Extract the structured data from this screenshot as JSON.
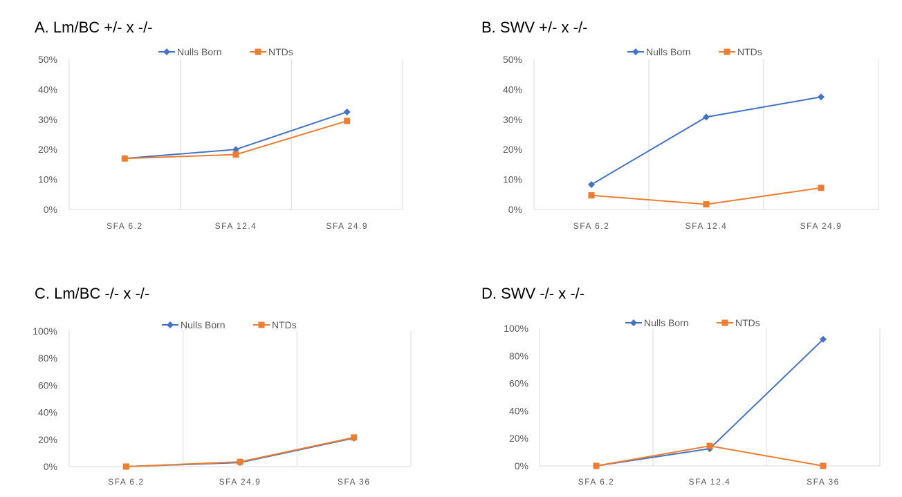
{
  "chart_data": [
    {
      "type": "line",
      "title": "A. Lm/BC +/- x -/-",
      "categories": [
        "SFA 6.2",
        "SFA 12.4",
        "SFA 24.9"
      ],
      "series": [
        {
          "name": "Nulls Born",
          "values": [
            0.17,
            0.2,
            0.325
          ],
          "color": "#4472C4",
          "marker": "diamond"
        },
        {
          "name": "NTDs",
          "values": [
            0.17,
            0.183,
            0.295
          ],
          "color": "#ED7D31",
          "marker": "square"
        }
      ],
      "ylim": [
        0,
        0.5
      ],
      "yticks": [
        "0%",
        "10%",
        "20%",
        "30%",
        "40%",
        "50%"
      ],
      "legend": "top-center",
      "grid": "vertical"
    },
    {
      "type": "line",
      "title": "B. SWV +/- x -/-",
      "categories": [
        "SFA 6.2",
        "SFA 12.4",
        "SFA 24.9"
      ],
      "series": [
        {
          "name": "Nulls Born",
          "values": [
            0.083,
            0.308,
            0.375
          ],
          "color": "#4472C4",
          "marker": "diamond"
        },
        {
          "name": "NTDs",
          "values": [
            0.047,
            0.017,
            0.072
          ],
          "color": "#ED7D31",
          "marker": "square"
        }
      ],
      "ylim": [
        0,
        0.5
      ],
      "yticks": [
        "0%",
        "10%",
        "20%",
        "30%",
        "40%",
        "50%"
      ],
      "legend": "top-center",
      "grid": "vertical"
    },
    {
      "type": "line",
      "title": "C. Lm/BC -/- x -/-",
      "categories": [
        "SFA 6.2",
        "SFA 24.9",
        "SFA 36"
      ],
      "series": [
        {
          "name": "Nulls Born",
          "values": [
            0.0,
            0.03,
            0.21
          ],
          "color": "#4472C4",
          "marker": "diamond"
        },
        {
          "name": "NTDs",
          "values": [
            0.0,
            0.035,
            0.215
          ],
          "color": "#ED7D31",
          "marker": "square"
        }
      ],
      "ylim": [
        0,
        1.0
      ],
      "yticks": [
        "0%",
        "20%",
        "40%",
        "60%",
        "80%",
        "100%"
      ],
      "legend": "top-center",
      "grid": "vertical"
    },
    {
      "type": "line",
      "title": "D. SWV -/- x -/-",
      "categories": [
        "SFA 6.2",
        "SFA 12.4",
        "SFA 36"
      ],
      "series": [
        {
          "name": "Nulls Born",
          "values": [
            0.0,
            0.125,
            0.92
          ],
          "color": "#4472C4",
          "marker": "diamond"
        },
        {
          "name": "NTDs",
          "values": [
            0.0,
            0.145,
            0.0
          ],
          "color": "#ED7D31",
          "marker": "square"
        }
      ],
      "ylim": [
        0,
        1.0
      ],
      "yticks": [
        "0%",
        "20%",
        "40%",
        "60%",
        "80%",
        "100%"
      ],
      "legend": "top-center",
      "grid": "vertical"
    }
  ]
}
